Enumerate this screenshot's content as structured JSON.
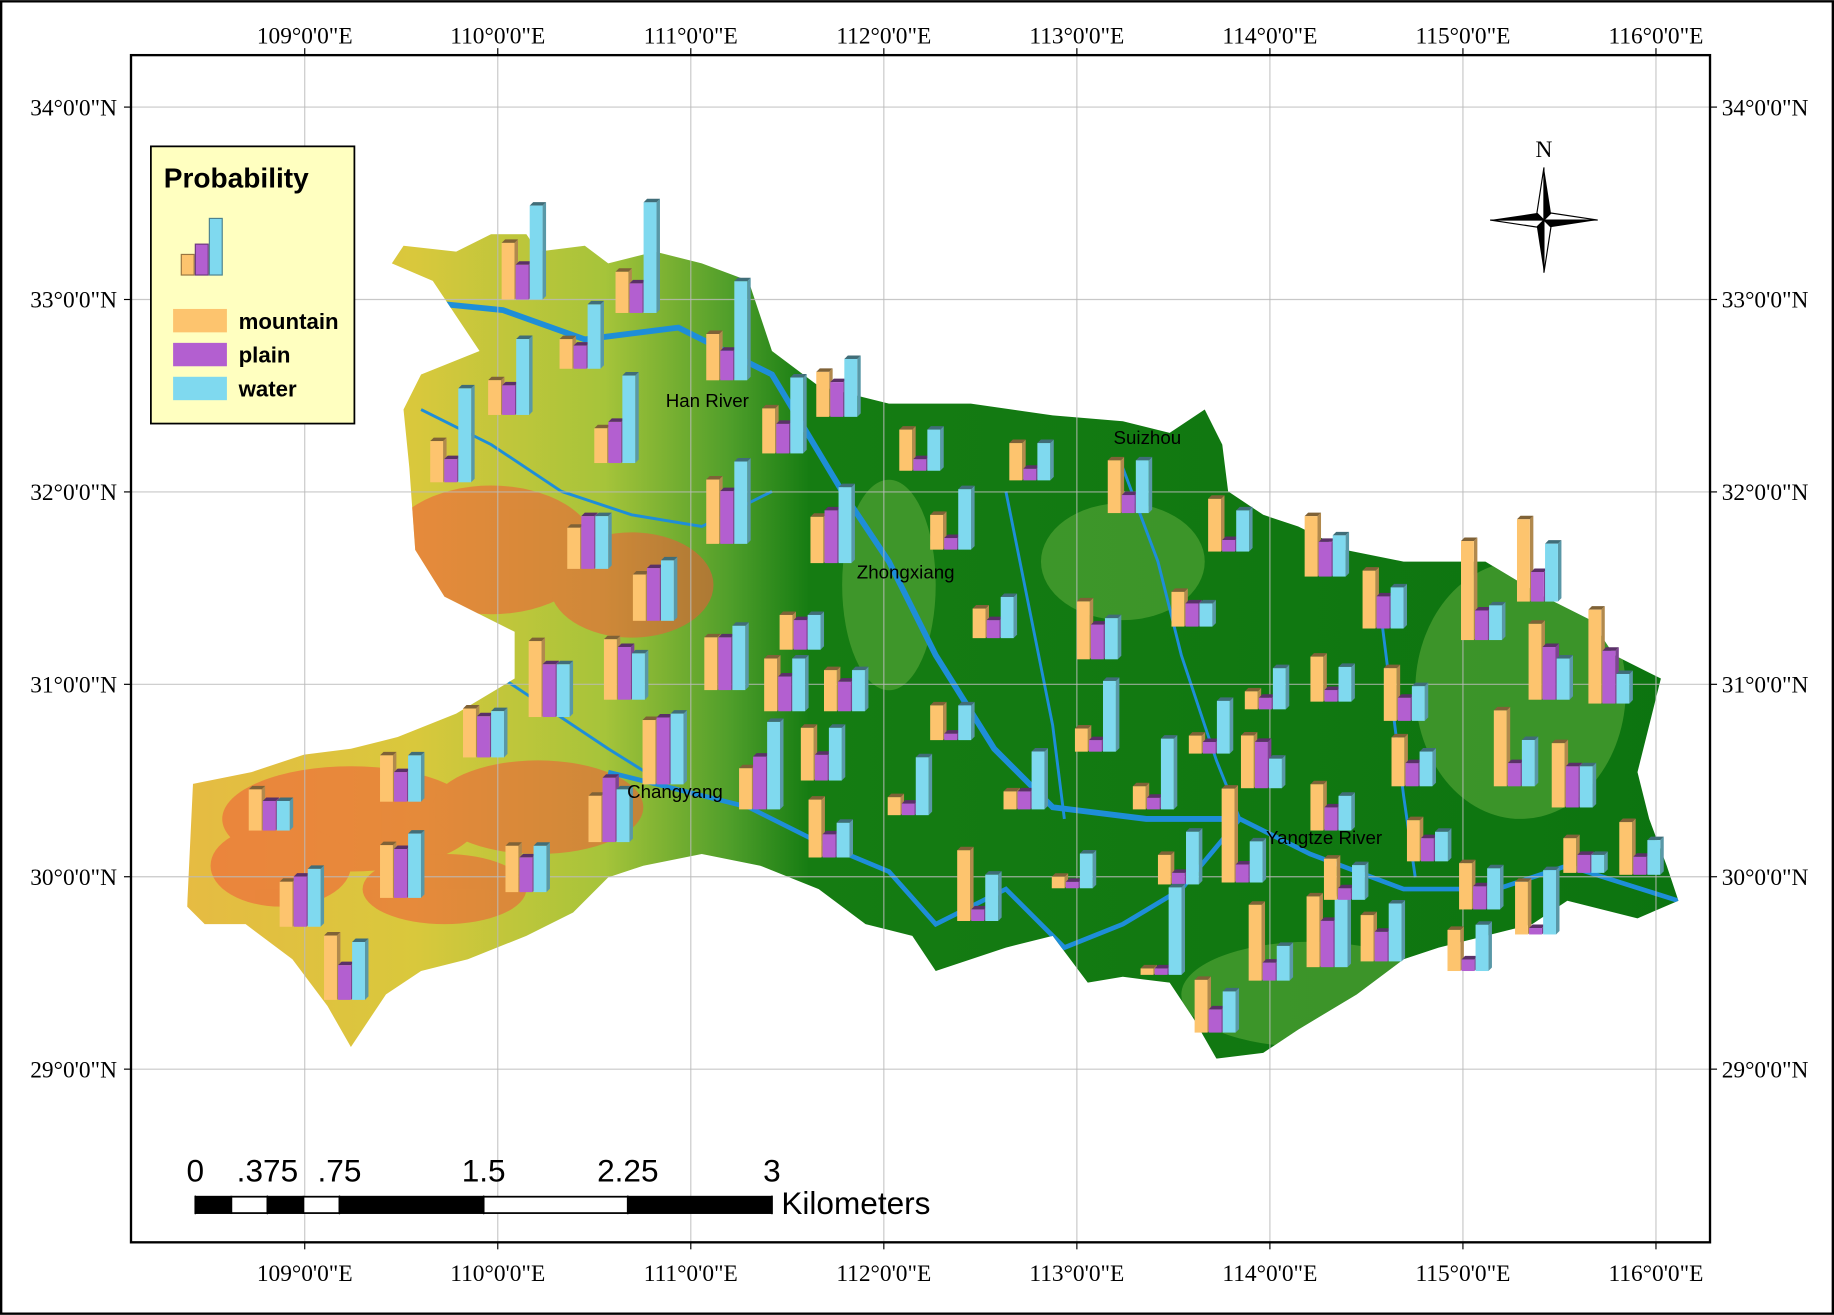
{
  "map": {
    "extent": {
      "lon": [
        108.1,
        116.28
      ],
      "lat": [
        28.1,
        34.27
      ]
    },
    "longitudes": [
      {
        "value": 109,
        "label": "109°0'0\"E"
      },
      {
        "value": 110,
        "label": "110°0'0\"E"
      },
      {
        "value": 111,
        "label": "111°0'0\"E"
      },
      {
        "value": 112,
        "label": "112°0'0\"E"
      },
      {
        "value": 113,
        "label": "113°0'0\"E"
      },
      {
        "value": 114,
        "label": "114°0'0\"E"
      },
      {
        "value": 115,
        "label": "115°0'0\"E"
      },
      {
        "value": 116,
        "label": "116°0'0\"E"
      }
    ],
    "latitudes": [
      {
        "value": 34,
        "label": "34°0'0\"N"
      },
      {
        "value": 33,
        "label": "33°0'0\"N"
      },
      {
        "value": 32,
        "label": "32°0'0\"N"
      },
      {
        "value": 31,
        "label": "31°0'0\"N"
      },
      {
        "value": 30,
        "label": "30°0'0\"N"
      },
      {
        "value": 29,
        "label": "29°0'0\"N"
      }
    ],
    "legend": {
      "title": "Probability",
      "items": [
        {
          "name": "mountain",
          "color": "#fdc46e"
        },
        {
          "name": "plain",
          "color": "#b35fd0"
        },
        {
          "name": "water",
          "color": "#7fd9ef"
        }
      ]
    },
    "places": [
      {
        "name": "Han River",
        "lon": 110.87,
        "lat": 32.44
      },
      {
        "name": "Suizhou",
        "lon": 113.19,
        "lat": 32.25
      },
      {
        "name": "Zhongxiang",
        "lon": 111.86,
        "lat": 31.55
      },
      {
        "name": "Changyang",
        "lon": 110.67,
        "lat": 30.41
      },
      {
        "name": "Yangtze River",
        "lon": 113.98,
        "lat": 30.17
      }
    ],
    "north": "N",
    "scale_bar": {
      "ticks": [
        {
          "value": 0,
          "label": "0"
        },
        {
          "value": 0.375,
          "label": ".375"
        },
        {
          "value": 0.75,
          "label": ".75"
        },
        1.5,
        2.25,
        3
      ],
      "unit": "Kilometers"
    },
    "sites": [
      {
        "lon": 110.02,
        "lat": 33.0,
        "values": [
          0.44,
          0.27,
          0.73
        ]
      },
      {
        "lon": 110.61,
        "lat": 32.93,
        "values": [
          0.32,
          0.23,
          0.86
        ]
      },
      {
        "lon": 111.08,
        "lat": 32.58,
        "values": [
          0.36,
          0.23,
          0.77
        ]
      },
      {
        "lon": 110.32,
        "lat": 32.64,
        "values": [
          0.23,
          0.18,
          0.5
        ]
      },
      {
        "lon": 109.95,
        "lat": 32.4,
        "values": [
          0.27,
          0.23,
          0.59
        ]
      },
      {
        "lon": 109.65,
        "lat": 32.05,
        "values": [
          0.32,
          0.18,
          0.73
        ]
      },
      {
        "lon": 110.5,
        "lat": 32.15,
        "values": [
          0.27,
          0.32,
          0.68
        ]
      },
      {
        "lon": 111.37,
        "lat": 32.2,
        "values": [
          0.35,
          0.23,
          0.59
        ]
      },
      {
        "lon": 111.65,
        "lat": 32.39,
        "values": [
          0.35,
          0.27,
          0.45
        ]
      },
      {
        "lon": 112.08,
        "lat": 32.11,
        "values": [
          0.32,
          0.09,
          0.32
        ]
      },
      {
        "lon": 112.65,
        "lat": 32.06,
        "values": [
          0.29,
          0.09,
          0.29
        ]
      },
      {
        "lon": 113.16,
        "lat": 31.89,
        "values": [
          0.41,
          0.14,
          0.41
        ]
      },
      {
        "lon": 113.68,
        "lat": 31.69,
        "values": [
          0.41,
          0.09,
          0.32
        ]
      },
      {
        "lon": 114.18,
        "lat": 31.56,
        "values": [
          0.47,
          0.27,
          0.32
        ]
      },
      {
        "lon": 114.48,
        "lat": 31.29,
        "values": [
          0.45,
          0.25,
          0.32
        ]
      },
      {
        "lon": 114.99,
        "lat": 31.23,
        "values": [
          0.77,
          0.23,
          0.27
        ]
      },
      {
        "lon": 115.28,
        "lat": 31.43,
        "values": [
          0.64,
          0.23,
          0.45
        ]
      },
      {
        "lon": 115.65,
        "lat": 30.9,
        "values": [
          0.73,
          0.41,
          0.23
        ]
      },
      {
        "lon": 115.34,
        "lat": 30.92,
        "values": [
          0.59,
          0.41,
          0.32
        ]
      },
      {
        "lon": 111.08,
        "lat": 31.73,
        "values": [
          0.5,
          0.41,
          0.64
        ]
      },
      {
        "lon": 110.36,
        "lat": 31.6,
        "values": [
          0.32,
          0.41,
          0.41
        ]
      },
      {
        "lon": 110.7,
        "lat": 31.33,
        "values": [
          0.36,
          0.41,
          0.47
        ]
      },
      {
        "lon": 111.07,
        "lat": 30.97,
        "values": [
          0.41,
          0.41,
          0.5
        ]
      },
      {
        "lon": 110.55,
        "lat": 30.92,
        "values": [
          0.47,
          0.41,
          0.36
        ]
      },
      {
        "lon": 110.16,
        "lat": 30.83,
        "values": [
          0.59,
          0.41,
          0.41
        ]
      },
      {
        "lon": 111.62,
        "lat": 31.63,
        "values": [
          0.36,
          0.41,
          0.59
        ]
      },
      {
        "lon": 112.24,
        "lat": 31.7,
        "values": [
          0.27,
          0.09,
          0.47
        ]
      },
      {
        "lon": 112.46,
        "lat": 31.24,
        "values": [
          0.23,
          0.14,
          0.32
        ]
      },
      {
        "lon": 113.0,
        "lat": 31.13,
        "values": [
          0.45,
          0.27,
          0.32
        ]
      },
      {
        "lon": 113.49,
        "lat": 31.3,
        "values": [
          0.27,
          0.18,
          0.18
        ]
      },
      {
        "lon": 111.46,
        "lat": 31.18,
        "values": [
          0.27,
          0.23,
          0.27
        ]
      },
      {
        "lon": 111.38,
        "lat": 30.86,
        "values": [
          0.41,
          0.27,
          0.41
        ]
      },
      {
        "lon": 111.69,
        "lat": 30.86,
        "values": [
          0.32,
          0.23,
          0.32
        ]
      },
      {
        "lon": 109.82,
        "lat": 30.62,
        "values": [
          0.38,
          0.32,
          0.36
        ]
      },
      {
        "lon": 110.75,
        "lat": 30.48,
        "values": [
          0.5,
          0.52,
          0.55
        ]
      },
      {
        "lon": 111.25,
        "lat": 30.35,
        "values": [
          0.32,
          0.41,
          0.68
        ]
      },
      {
        "lon": 111.57,
        "lat": 30.5,
        "values": [
          0.41,
          0.2,
          0.41
        ]
      },
      {
        "lon": 109.39,
        "lat": 30.39,
        "values": [
          0.36,
          0.23,
          0.36
        ]
      },
      {
        "lon": 108.71,
        "lat": 30.24,
        "values": [
          0.32,
          0.23,
          0.23
        ]
      },
      {
        "lon": 108.87,
        "lat": 29.74,
        "values": [
          0.35,
          0.39,
          0.45
        ]
      },
      {
        "lon": 109.39,
        "lat": 29.89,
        "values": [
          0.41,
          0.38,
          0.5
        ]
      },
      {
        "lon": 110.04,
        "lat": 29.92,
        "values": [
          0.36,
          0.27,
          0.36
        ]
      },
      {
        "lon": 109.1,
        "lat": 29.36,
        "values": [
          0.5,
          0.27,
          0.45
        ]
      },
      {
        "lon": 110.47,
        "lat": 30.18,
        "values": [
          0.36,
          0.5,
          0.41
        ]
      },
      {
        "lon": 111.61,
        "lat": 30.1,
        "values": [
          0.45,
          0.18,
          0.27
        ]
      },
      {
        "lon": 112.02,
        "lat": 30.32,
        "values": [
          0.14,
          0.09,
          0.45
        ]
      },
      {
        "lon": 112.24,
        "lat": 30.71,
        "values": [
          0.27,
          0.05,
          0.27
        ]
      },
      {
        "lon": 112.38,
        "lat": 29.77,
        "values": [
          0.55,
          0.09,
          0.36
        ]
      },
      {
        "lon": 112.62,
        "lat": 30.35,
        "values": [
          0.14,
          0.14,
          0.45
        ]
      },
      {
        "lon": 112.99,
        "lat": 30.65,
        "values": [
          0.18,
          0.09,
          0.55
        ]
      },
      {
        "lon": 113.29,
        "lat": 30.35,
        "values": [
          0.18,
          0.09,
          0.55
        ]
      },
      {
        "lon": 112.87,
        "lat": 29.94,
        "values": [
          0.09,
          0.05,
          0.27
        ]
      },
      {
        "lon": 113.42,
        "lat": 29.96,
        "values": [
          0.23,
          0.09,
          0.41
        ]
      },
      {
        "lon": 113.33,
        "lat": 29.49,
        "values": [
          0.05,
          0.05,
          0.68
        ]
      },
      {
        "lon": 113.58,
        "lat": 30.64,
        "values": [
          0.14,
          0.09,
          0.41
        ]
      },
      {
        "lon": 113.85,
        "lat": 30.46,
        "values": [
          0.41,
          0.36,
          0.23
        ]
      },
      {
        "lon": 113.75,
        "lat": 29.97,
        "values": [
          0.73,
          0.14,
          0.32
        ]
      },
      {
        "lon": 114.21,
        "lat": 30.91,
        "values": [
          0.35,
          0.09,
          0.27
        ]
      },
      {
        "lon": 114.21,
        "lat": 30.24,
        "values": [
          0.36,
          0.18,
          0.27
        ]
      },
      {
        "lon": 113.89,
        "lat": 29.46,
        "values": [
          0.59,
          0.14,
          0.27
        ]
      },
      {
        "lon": 114.19,
        "lat": 29.53,
        "values": [
          0.55,
          0.36,
          0.55
        ]
      },
      {
        "lon": 114.47,
        "lat": 29.56,
        "values": [
          0.36,
          0.23,
          0.45
        ]
      },
      {
        "lon": 114.59,
        "lat": 30.81,
        "values": [
          0.41,
          0.18,
          0.27
        ]
      },
      {
        "lon": 114.63,
        "lat": 30.47,
        "values": [
          0.38,
          0.18,
          0.27
        ]
      },
      {
        "lon": 114.71,
        "lat": 30.08,
        "values": [
          0.32,
          0.18,
          0.23
        ]
      },
      {
        "lon": 114.98,
        "lat": 29.83,
        "values": [
          0.36,
          0.18,
          0.32
        ]
      },
      {
        "lon": 114.92,
        "lat": 29.51,
        "values": [
          0.32,
          0.09,
          0.36
        ]
      },
      {
        "lon": 115.27,
        "lat": 29.7,
        "values": [
          0.41,
          0.05,
          0.5
        ]
      },
      {
        "lon": 115.16,
        "lat": 30.47,
        "values": [
          0.59,
          0.18,
          0.36
        ]
      },
      {
        "lon": 115.46,
        "lat": 30.36,
        "values": [
          0.5,
          0.32,
          0.32
        ]
      },
      {
        "lon": 115.81,
        "lat": 30.01,
        "values": [
          0.41,
          0.14,
          0.27
        ]
      },
      {
        "lon": 113.61,
        "lat": 29.19,
        "values": [
          0.41,
          0.18,
          0.32
        ]
      },
      {
        "lon": 114.28,
        "lat": 29.88,
        "values": [
          0.32,
          0.09,
          0.27
        ]
      },
      {
        "lon": 115.52,
        "lat": 30.02,
        "values": [
          0.27,
          0.14,
          0.14
        ]
      },
      {
        "lon": 113.87,
        "lat": 30.87,
        "values": [
          0.14,
          0.09,
          0.32
        ]
      }
    ]
  }
}
